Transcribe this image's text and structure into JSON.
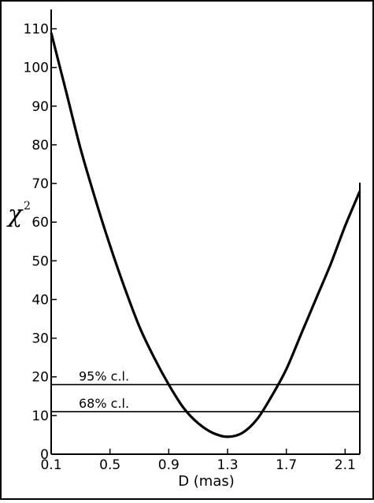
{
  "chart_data": {
    "type": "line",
    "title": "",
    "xlabel": "D (mas)",
    "ylabel": "χ",
    "ylabel_superscript": "2",
    "xlim": [
      0.1,
      2.2
    ],
    "ylim": [
      0,
      115
    ],
    "grid": false,
    "x_ticks": [
      0.1,
      0.5,
      0.9,
      1.3,
      1.7,
      2.1
    ],
    "x_tick_labels": [
      "0.1",
      "0.5",
      "0.9",
      "1.3",
      "1.7",
      "2.1"
    ],
    "y_ticks": [
      0,
      10,
      20,
      30,
      40,
      50,
      60,
      70,
      80,
      90,
      100,
      110
    ],
    "y_tick_labels": [
      "0",
      "10",
      "20",
      "30",
      "40",
      "50",
      "60",
      "70",
      "80",
      "90",
      "100",
      "110"
    ],
    "series": [
      {
        "x": [
          0.1,
          0.2,
          0.3,
          0.4,
          0.5,
          0.6,
          0.7,
          0.8,
          0.9,
          1.0,
          1.1,
          1.2,
          1.3,
          1.4,
          1.5,
          1.6,
          1.7,
          1.8,
          1.9,
          2.0,
          2.1,
          2.2
        ],
        "y": [
          109,
          94,
          79,
          66,
          54,
          43,
          33,
          25,
          18,
          12,
          8,
          5.5,
          4.5,
          5.5,
          9,
          15,
          22,
          31,
          40,
          49,
          59,
          68
        ]
      }
    ],
    "reference_lines": [
      {
        "y": 18,
        "label": "95% c.l."
      },
      {
        "y": 11,
        "label": "68% c.l."
      }
    ]
  }
}
